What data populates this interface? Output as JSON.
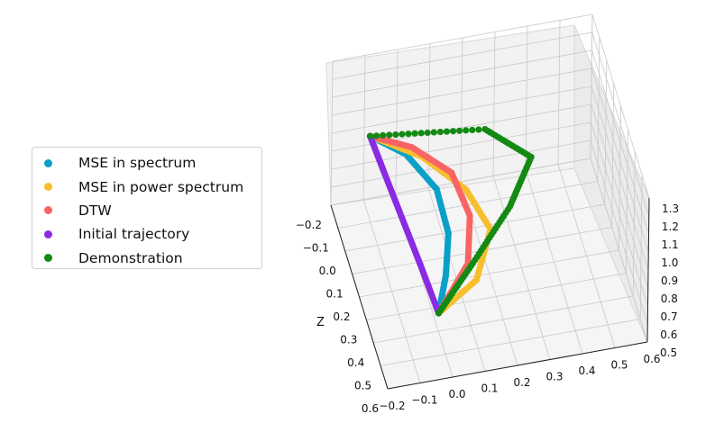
{
  "chart_data": {
    "type": "scatter",
    "projection": "3d",
    "grid": true,
    "legend_placement": "center-left",
    "x_axis": {
      "label": "",
      "ticks": [
        "−0.2",
        "−0.1",
        "0.0",
        "0.1",
        "0.2",
        "0.3",
        "0.4",
        "0.5",
        "0.6"
      ],
      "range": [
        -0.2,
        0.6
      ]
    },
    "y_axis": {
      "label": "Z",
      "ticks": [
        "−0.2",
        "−0.1",
        "0.0",
        "0.1",
        "0.2",
        "0.3",
        "0.4",
        "0.5",
        "0.6"
      ],
      "range": [
        -0.2,
        0.6
      ]
    },
    "z_axis": {
      "label": "",
      "ticks": [
        "0.5",
        "0.6",
        "0.7",
        "0.8",
        "0.9",
        "1.0",
        "1.1",
        "1.2",
        "1.3"
      ],
      "range": [
        0.5,
        1.3
      ]
    },
    "series": [
      {
        "name": "MSE in spectrum",
        "color": "#0aa0c8",
        "start": [
          0.0,
          0.4,
          0.6
        ],
        "end": [
          -0.15,
          0.1,
          1.25
        ],
        "points": [
          [
            0.0,
            0.4,
            0.6
          ],
          [
            0.03,
            0.36,
            0.75
          ],
          [
            0.05,
            0.3,
            0.9
          ],
          [
            0.03,
            0.22,
            1.05
          ],
          [
            -0.05,
            0.15,
            1.18
          ],
          [
            -0.15,
            0.1,
            1.25
          ]
        ]
      },
      {
        "name": "MSE in power spectrum",
        "color": "#f8bf2d",
        "start": [
          0.0,
          0.4,
          0.6
        ],
        "end": [
          -0.15,
          0.1,
          1.25
        ],
        "points": [
          [
            0.0,
            0.4,
            0.6
          ],
          [
            0.12,
            0.38,
            0.72
          ],
          [
            0.18,
            0.3,
            0.88
          ],
          [
            0.12,
            0.22,
            1.02
          ],
          [
            0.0,
            0.15,
            1.15
          ],
          [
            -0.15,
            0.1,
            1.25
          ]
        ]
      },
      {
        "name": "DTW",
        "color": "#f96464",
        "start": [
          0.0,
          0.4,
          0.6
        ],
        "end": [
          -0.15,
          0.1,
          1.25
        ],
        "points": [
          [
            0.0,
            0.4,
            0.6
          ],
          [
            0.1,
            0.35,
            0.78
          ],
          [
            0.12,
            0.28,
            0.95
          ],
          [
            0.08,
            0.2,
            1.1
          ],
          [
            -0.03,
            0.14,
            1.2
          ],
          [
            -0.15,
            0.1,
            1.25
          ]
        ]
      },
      {
        "name": "Initial trajectory",
        "color": "#8a2be2",
        "start": [
          0.0,
          0.4,
          0.6
        ],
        "end": [
          -0.15,
          0.1,
          1.25
        ],
        "points": [
          [
            0.0,
            0.4,
            0.6
          ],
          [
            -0.04,
            0.32,
            0.78
          ],
          [
            -0.08,
            0.24,
            0.95
          ],
          [
            -0.12,
            0.16,
            1.12
          ],
          [
            -0.15,
            0.1,
            1.25
          ]
        ]
      },
      {
        "name": "Demonstration",
        "color": "#138a13",
        "start": [
          0.0,
          0.4,
          0.6
        ],
        "end": [
          -0.15,
          0.1,
          1.25
        ],
        "points": [
          [
            0.0,
            0.4,
            0.6
          ],
          [
            0.12,
            0.33,
            0.75
          ],
          [
            0.25,
            0.25,
            0.92
          ],
          [
            0.33,
            0.18,
            1.08
          ],
          [
            0.2,
            0.12,
            1.2
          ],
          [
            -0.15,
            0.1,
            1.25
          ]
        ]
      }
    ]
  }
}
